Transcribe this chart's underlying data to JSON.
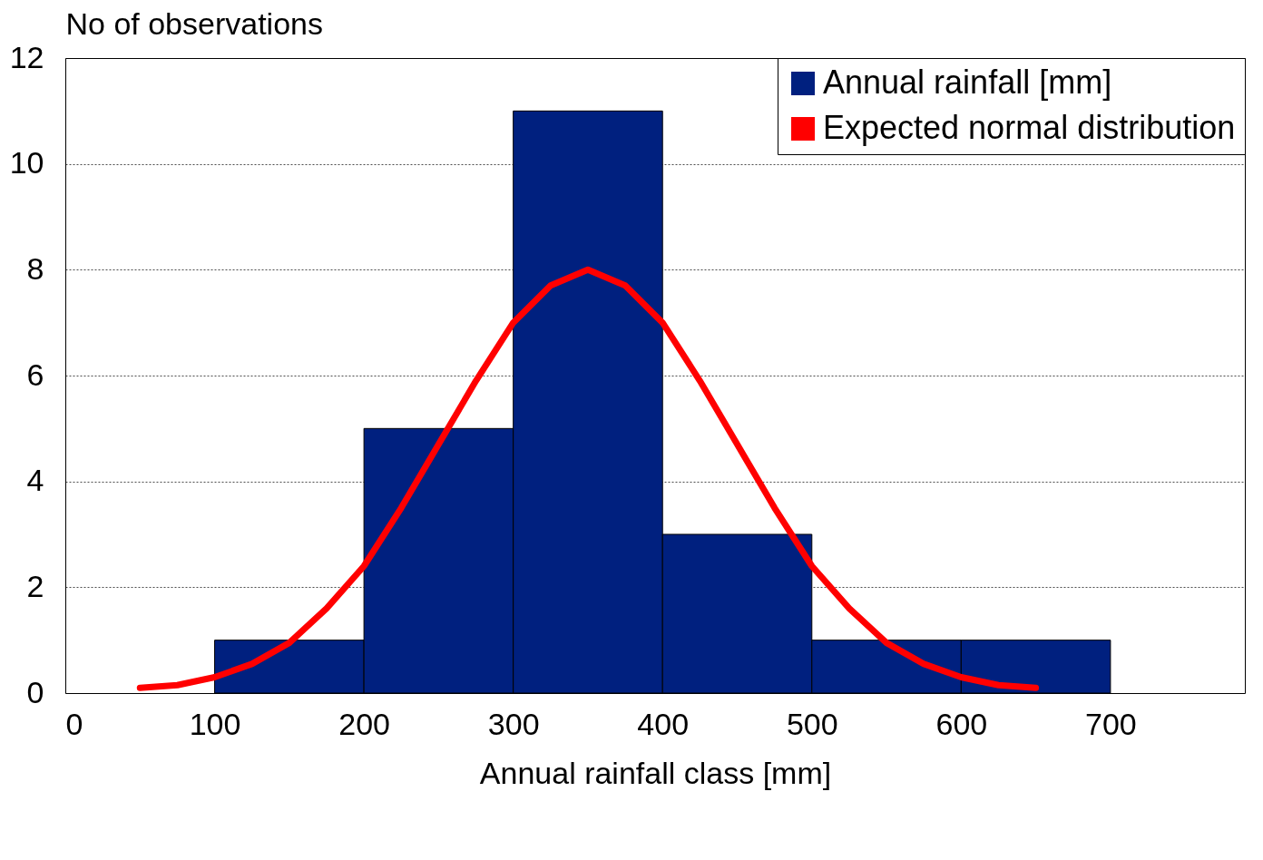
{
  "chart_data": {
    "type": "histogram",
    "xlabel": "Annual rainfall class [mm]",
    "ylabel": "No of observations",
    "xlim": [
      0,
      790
    ],
    "xticks": [
      0,
      100,
      200,
      300,
      400,
      500,
      600,
      700
    ],
    "ylim": [
      0,
      12
    ],
    "yticks": [
      0,
      2,
      4,
      6,
      8,
      10,
      12
    ],
    "grid": "y",
    "legend": "top right",
    "series": [
      {
        "type": "histogram",
        "name": "Annual rainfall [mm]",
        "color": "#00207f",
        "bins": [
          100,
          200,
          300,
          400,
          500,
          600,
          700
        ],
        "values": [
          1,
          5,
          11,
          3,
          1,
          1
        ]
      },
      {
        "type": "line",
        "name": "Expected normal distribution",
        "color": "#ff0000",
        "x": [
          50,
          75,
          100,
          125,
          150,
          175,
          200,
          225,
          250,
          275,
          300,
          325,
          350,
          375,
          400,
          425,
          450,
          475,
          500,
          525,
          550,
          575,
          600,
          625,
          650
        ],
        "values": [
          0.1,
          0.15,
          0.3,
          0.55,
          0.95,
          1.6,
          2.4,
          3.5,
          4.7,
          5.9,
          7.0,
          7.7,
          8.0,
          7.7,
          7.0,
          5.9,
          4.7,
          3.5,
          2.4,
          1.6,
          0.95,
          0.55,
          0.3,
          0.15,
          0.1
        ]
      }
    ]
  }
}
